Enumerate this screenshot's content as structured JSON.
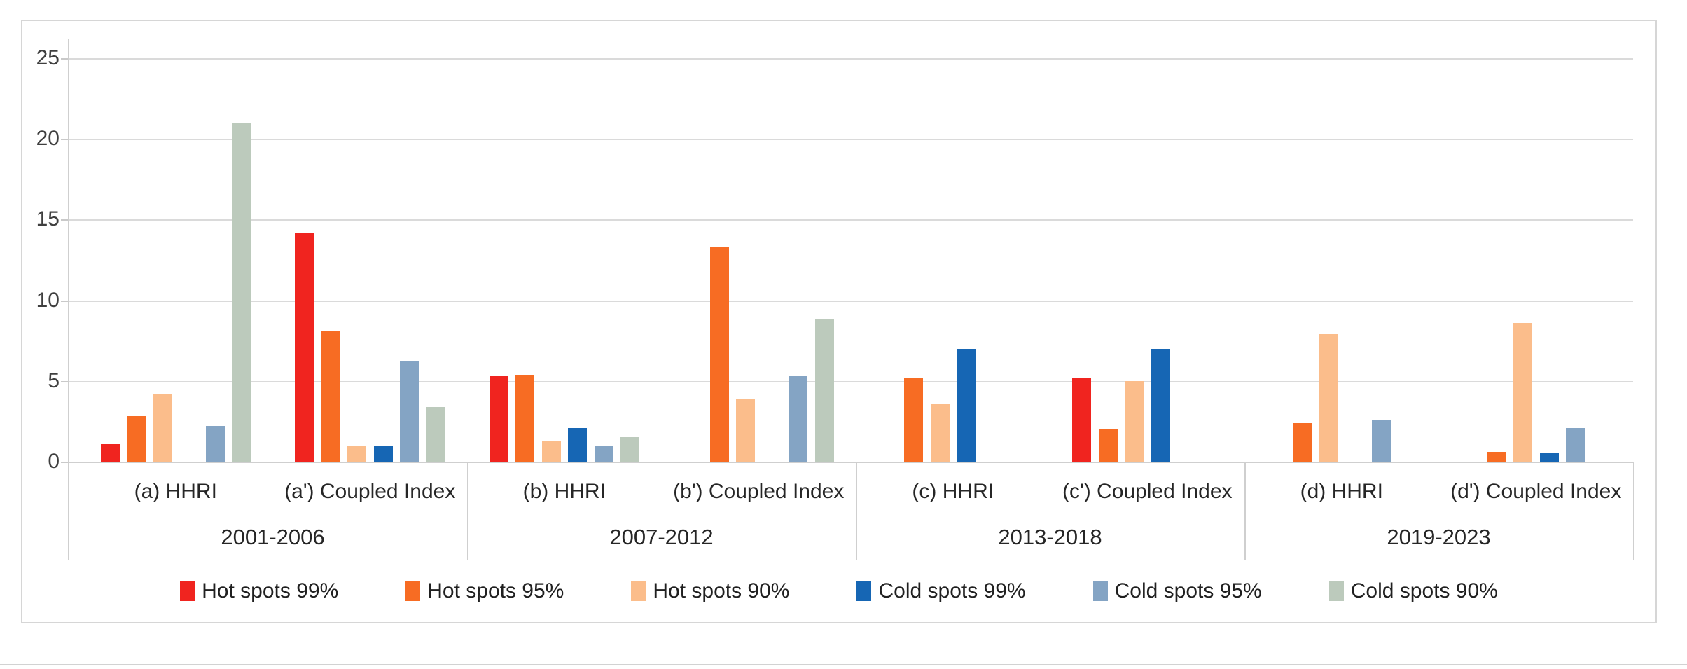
{
  "chart_data": {
    "type": "bar",
    "title": "",
    "xlabel": "",
    "ylabel": "",
    "ylim": [
      0,
      25
    ],
    "yticks": [
      0,
      5,
      10,
      15,
      20,
      25
    ],
    "grid": true,
    "legend_position": "bottom",
    "categories": [
      "(a) HHRI",
      "(a') Coupled Index",
      "(b) HHRI",
      "(b') Coupled Index",
      "(c) HHRI",
      "(c') Coupled Index",
      "(d) HHRI",
      "(d') Coupled Index"
    ],
    "category_groups": [
      {
        "label": "2001-2006",
        "start": 0,
        "end": 1
      },
      {
        "label": "2007-2012",
        "start": 2,
        "end": 3
      },
      {
        "label": "2013-2018",
        "start": 4,
        "end": 5
      },
      {
        "label": "2019-2023",
        "start": 6,
        "end": 7
      }
    ],
    "series": [
      {
        "name": "Hot spots 99%",
        "color": "#f0241f",
        "values": [
          1.1,
          14.2,
          5.3,
          0,
          0,
          5.2,
          0,
          0
        ]
      },
      {
        "name": "Hot spots 95%",
        "color": "#f76c23",
        "values": [
          2.8,
          8.1,
          5.4,
          13.3,
          5.2,
          2.0,
          2.4,
          0.6
        ]
      },
      {
        "name": "Hot spots 90%",
        "color": "#fbbd8b",
        "values": [
          4.2,
          1.0,
          1.3,
          3.9,
          3.6,
          5.0,
          7.9,
          8.6
        ]
      },
      {
        "name": "Cold spots 99%",
        "color": "#1666b4",
        "values": [
          0,
          1.0,
          2.1,
          0,
          7.0,
          7.0,
          0,
          0.5
        ]
      },
      {
        "name": "Cold spots 95%",
        "color": "#84a4c4",
        "values": [
          2.2,
          6.2,
          1.0,
          5.3,
          0,
          0,
          2.6,
          2.1
        ]
      },
      {
        "name": "Cold spots 90%",
        "color": "#bccabc",
        "values": [
          21,
          3.4,
          1.5,
          8.8,
          0,
          0,
          0,
          0
        ]
      }
    ]
  }
}
